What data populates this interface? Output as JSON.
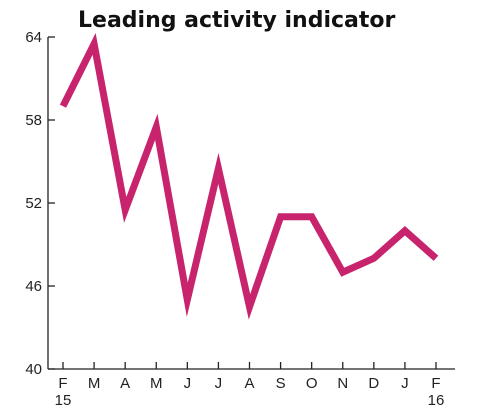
{
  "chart_data": {
    "type": "line",
    "title": "Leading activity indicator",
    "categories": [
      "F",
      "M",
      "A",
      "M",
      "J",
      "J",
      "A",
      "S",
      "O",
      "N",
      "D",
      "J",
      "F"
    ],
    "year_labels": [
      "15",
      "",
      "",
      "",
      "",
      "",
      "",
      "",
      "",
      "",
      "",
      "",
      "16"
    ],
    "series": [
      {
        "values": [
          59,
          63.5,
          51.5,
          57.5,
          45,
          54.5,
          44.5,
          51,
          51,
          47,
          48,
          50,
          48
        ]
      }
    ],
    "yticks": [
      40,
      46,
      52,
      58,
      64
    ],
    "ylim": [
      40,
      64
    ],
    "xlabel": "",
    "ylabel": "",
    "line_color": "#c8246e",
    "grid": false
  }
}
